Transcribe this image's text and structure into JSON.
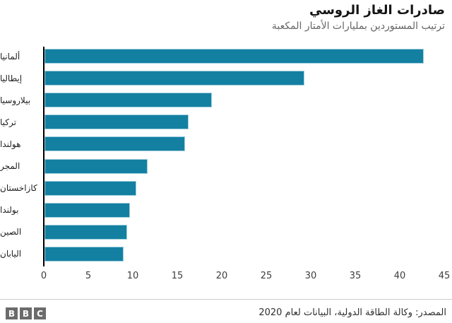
{
  "header": {
    "title": "صادرات الغاز الروسي",
    "subtitle": "ترتيب المستوردين بمليارات الأمتار المكعبة"
  },
  "chart_data": {
    "type": "bar",
    "orientation": "horizontal",
    "title": "صادرات الغاز الروسي",
    "subtitle": "ترتيب المستوردين بمليارات الأمتار المكعبة",
    "categories": [
      "ألمانيا",
      "إيطاليا",
      "بيلاروسيا",
      "تركيا",
      "هولندا",
      "المجر",
      "كازاخستان",
      "بولندا",
      "الصين",
      "اليابان"
    ],
    "values": [
      42.6,
      29.2,
      18.8,
      16.2,
      15.8,
      11.6,
      10.3,
      9.6,
      9.3,
      8.9
    ],
    "xlabel": "",
    "ylabel": "",
    "xlim": [
      0,
      45
    ],
    "x_ticks": [
      0,
      5,
      10,
      15,
      20,
      25,
      30,
      35,
      40,
      45
    ],
    "grid": false,
    "legend": false,
    "bar_color": "#1380a1",
    "axis_color": "#000000"
  },
  "footer": {
    "source": "المصدر: وكالة الطاقة الدولية، البيانات لعام 2020",
    "logo_letters": [
      "B",
      "B",
      "C"
    ],
    "logo_color": "#6b6b6b"
  }
}
